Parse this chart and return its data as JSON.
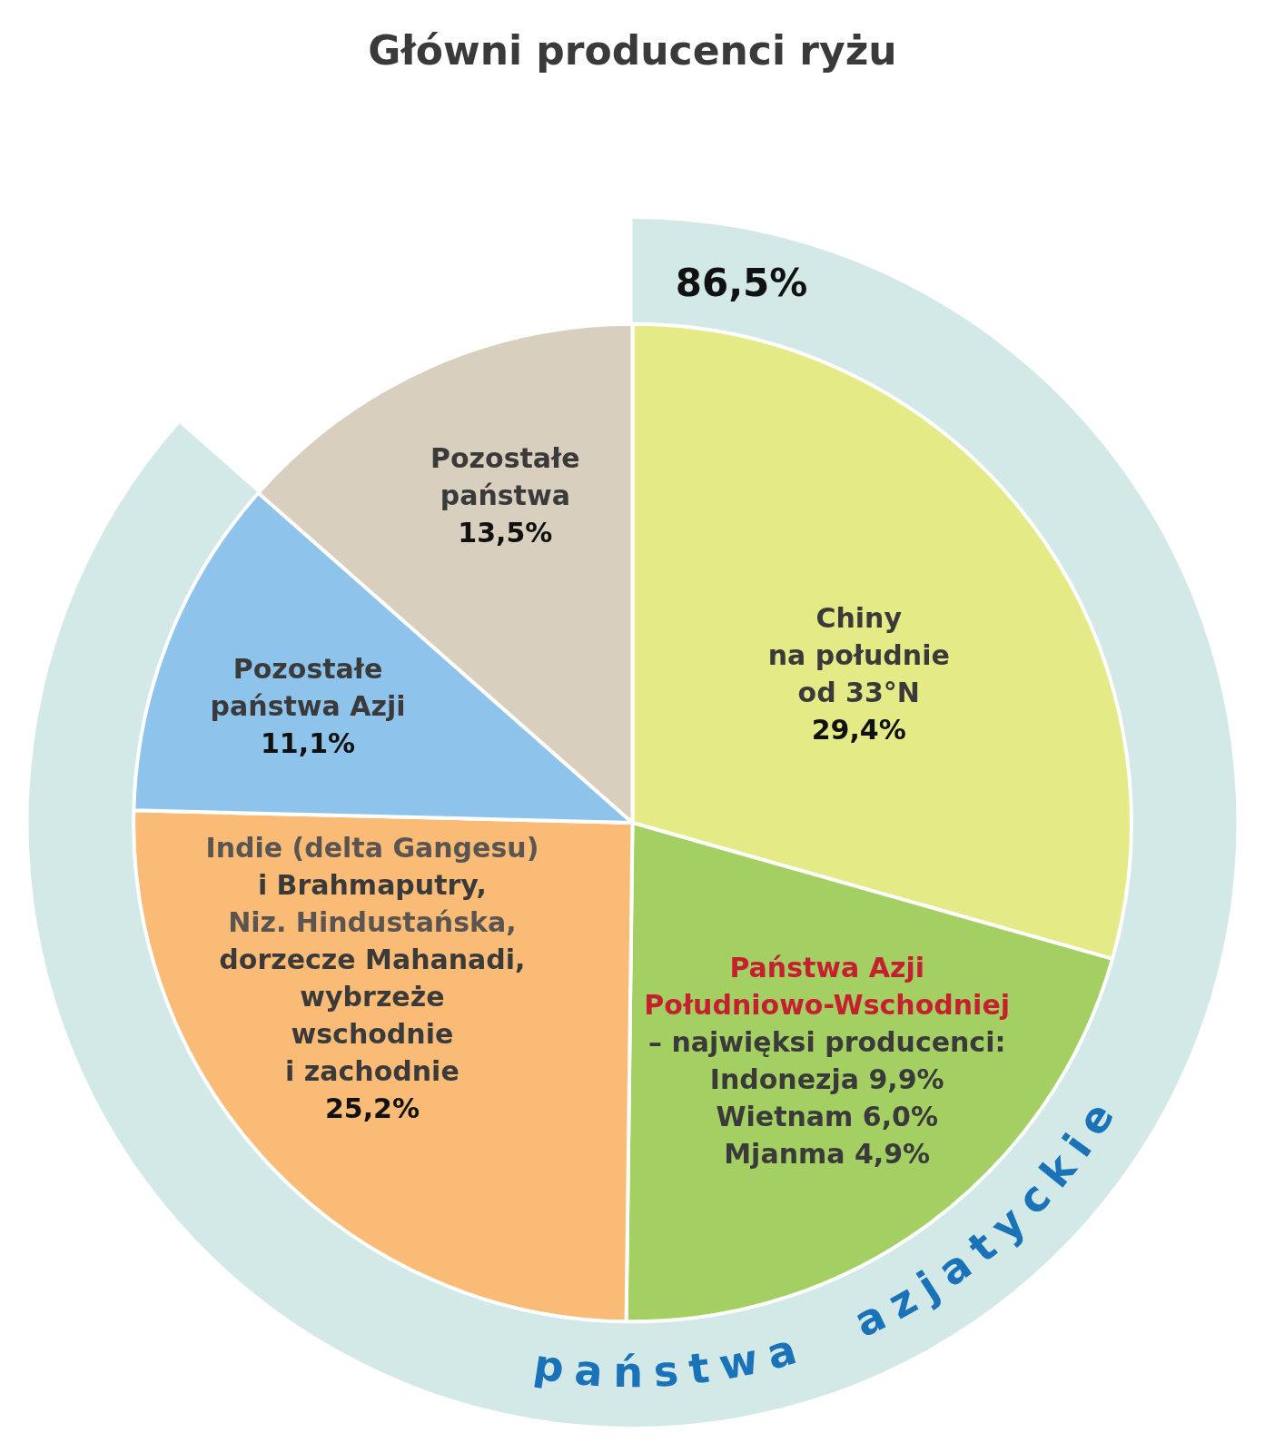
{
  "chart_data": {
    "type": "pie",
    "title": "Główni producenci ryżu",
    "categories": [
      "Chiny\nna południe\nod 33°N",
      "Państwa Azji\nPołudniowo-Wschodniej\n– najwięksi producenci:\nIndonezja 9,9%\nWietnam 6,0%\nMjanma 4,9%",
      "Indie (delta Gangesu)\ni Brahmaputry,\nNiz. Hindustańska,\ndorzecze Mahanadi,\nwybrzeże\nwschodnie\ni zachodnie",
      "Pozostałe\npaństwa Azji",
      "Pozostałe\npaństwa"
    ],
    "series": [
      {
        "type": "pie",
        "values": [
          29.4,
          20.8,
          25.2,
          11.1,
          13.5
        ],
        "colors": [
          "#e4ea86",
          "#a4cf62",
          "#f9bb75",
          "#8ec4eb",
          "#d9cfbf"
        ],
        "value_labels": [
          "29,4%",
          null,
          "25,2%",
          "11,1%",
          "13,5%"
        ]
      },
      {
        "type": "donut",
        "name": "państwa azjatyckie",
        "color": "#d3e9e7",
        "values": [
          86.5,
          null,
          null,
          null,
          null
        ],
        "value_labels": [
          "86,5%",
          null,
          null,
          null,
          null
        ]
      }
    ]
  }
}
